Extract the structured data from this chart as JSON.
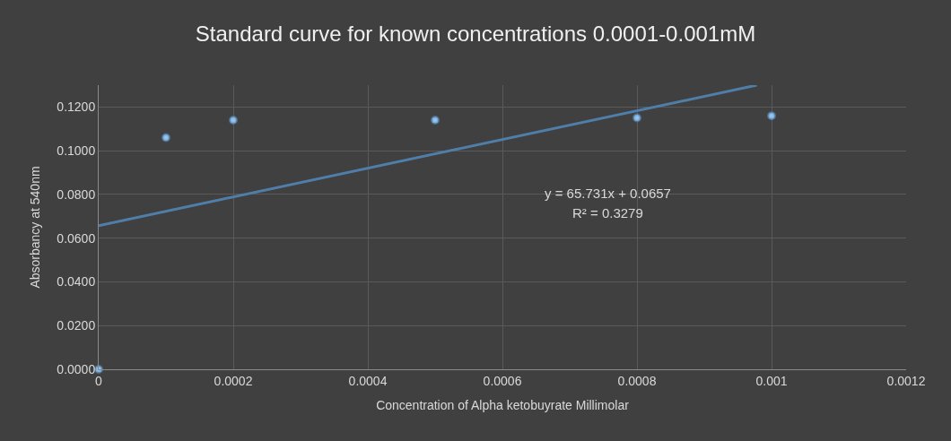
{
  "chart_data": {
    "type": "scatter",
    "title": "Standard curve for known concentrations 0.0001-0.001mM",
    "xlabel": "Concentration of Alpha ketobuyrate Millimolar",
    "ylabel": "Absorbancy at 540nm",
    "series": [
      {
        "color": "#9dc3e6",
        "x": [
          0,
          0.0001,
          0.0002,
          0.0005,
          0.0008,
          0.001
        ],
        "values": [
          0,
          0.106,
          0.114,
          0.114,
          0.115,
          0.116
        ]
      },
      {
        "type": "line",
        "marker": "none",
        "color": "#4f7ea8",
        "x": [
          0,
          0.000978
        ],
        "values": [
          0.0657,
          0.13
        ]
      }
    ],
    "xlim": [
      0,
      0.0012
    ],
    "xticks": [
      0,
      0.0002,
      0.0004,
      0.0006,
      0.0008,
      0.001,
      0.0012
    ],
    "ylim": [
      0,
      0.13
    ],
    "yticks": [
      {
        "value": 0,
        "label": "0.0000"
      },
      {
        "value": 0.02,
        "label": "0.0200"
      },
      {
        "value": 0.04,
        "label": "0.0400"
      },
      {
        "value": 0.06,
        "label": "0.0600"
      },
      {
        "value": 0.08,
        "label": "0.0800"
      },
      {
        "value": 0.1,
        "label": "0.1000"
      },
      {
        "value": 0.12,
        "label": "0.1200"
      }
    ],
    "annotations": [
      "y = 65.731x + 0.0657",
      "R² = 0.3279"
    ],
    "grid": true,
    "marker": "circle"
  }
}
